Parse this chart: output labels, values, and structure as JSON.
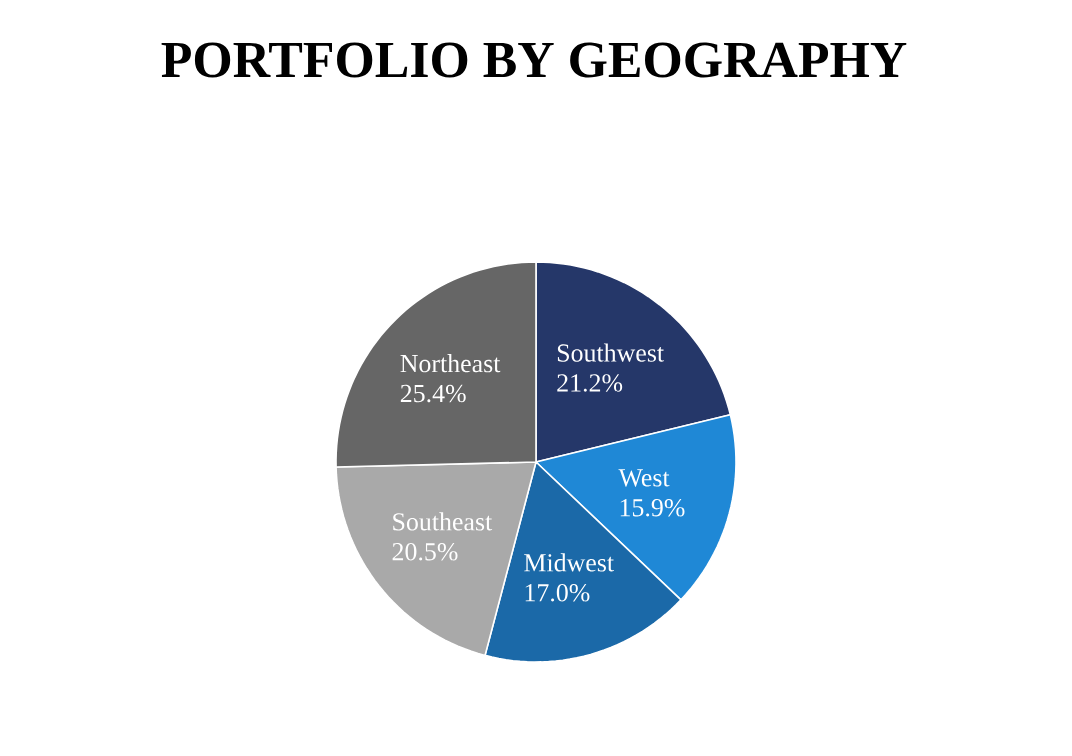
{
  "chart_data": {
    "type": "pie",
    "title": "PORTFOLIO BY GEOGRAPHY",
    "categories": [
      "Southwest",
      "West",
      "Midwest",
      "Southeast",
      "Northeast"
    ],
    "values": [
      21.2,
      15.9,
      17.0,
      20.5,
      25.4
    ],
    "value_labels": [
      "21.2%",
      "15.9%",
      "17.0%",
      "20.5%",
      "25.4%"
    ],
    "colors": [
      "#253769",
      "#1f88d6",
      "#1b69a8",
      "#a9a9a9",
      "#666666"
    ],
    "legend": false
  }
}
